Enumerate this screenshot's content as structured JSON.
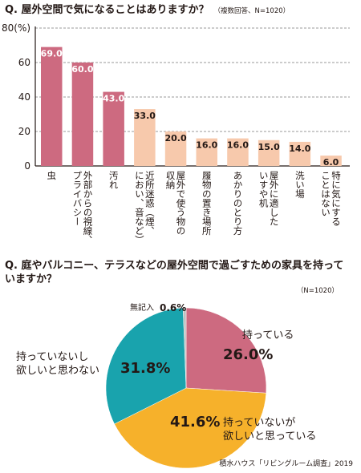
{
  "chart_data": [
    {
      "type": "bar",
      "title": "Q. 屋外空間で気になることはありますか？",
      "subtitle": "（複数回答、N=1020）",
      "y_unit_label": "80(%)",
      "ylim": [
        0,
        80
      ],
      "yticks": [
        "0",
        "20",
        "40",
        "60",
        "80(%)"
      ],
      "grid": true,
      "categories": [
        "虫",
        "外部からの視線、プライバシー",
        "汚れ",
        "近所迷惑（煙、におい、音など）",
        "屋外で使う物の収納",
        "履物の置き場所",
        "あかりのとり方",
        "屋外に適したいすや机",
        "洗い場",
        "特に気にすることはない"
      ],
      "category_lines": [
        [
          "虫"
        ],
        [
          "外部からの視線、",
          "プライバシー"
        ],
        [
          "汚れ"
        ],
        [
          "近所迷惑（煙、",
          "におい、音など）"
        ],
        [
          "屋外で使う物の",
          "収納"
        ],
        [
          "履物の置き場所"
        ],
        [
          "あかりのとり方"
        ],
        [
          "屋外に適した",
          "いすや机"
        ],
        [
          "洗い場"
        ],
        [
          "特に気にする",
          "ことはない"
        ]
      ],
      "values": [
        69.0,
        60.0,
        43.0,
        33.0,
        20.0,
        16.0,
        16.0,
        15.0,
        14.0,
        6.0
      ],
      "value_labels": [
        "69.0",
        "60.0",
        "43.0",
        "33.0",
        "20.0",
        "16.0",
        "16.0",
        "15.0",
        "14.0",
        "6.0"
      ],
      "colors": [
        "#cd6a80",
        "#cd6a80",
        "#cd6a80",
        "#f7c9ac",
        "#f7c9ac",
        "#f7c9ac",
        "#f7c9ac",
        "#f7c9ac",
        "#f7c9ac",
        "#f7c9ac"
      ],
      "label_colors": [
        "#ffffff",
        "#ffffff",
        "#ffffff",
        "#231815",
        "#231815",
        "#231815",
        "#231815",
        "#231815",
        "#231815",
        "#231815"
      ]
    },
    {
      "type": "pie",
      "title": "Q. 庭やバルコニー、テラスなどの屋外空間で過ごすための家具を持っていますか？",
      "note": "（N=1020）",
      "slices": [
        {
          "label": "持っている",
          "value": 26.0,
          "value_label": "26.0%",
          "color": "#cd6a80"
        },
        {
          "label": "持っていないが欲しいと思っている",
          "label_lines": [
            "持っていないが",
            "欲しいと思っている"
          ],
          "value": 41.6,
          "value_label": "41.6%",
          "color": "#f6b12b"
        },
        {
          "label": "持っていないし欲しいと思わない",
          "label_lines": [
            "持っていないし",
            "欲しいと思わない"
          ],
          "value": 31.8,
          "value_label": "31.8%",
          "color": "#19a3ad"
        },
        {
          "label": "無記入",
          "value": 0.6,
          "value_label": "0.6%",
          "color": "#bfbfbf"
        }
      ]
    }
  ],
  "source": "積水ハウス「リビングルーム調査」2019"
}
